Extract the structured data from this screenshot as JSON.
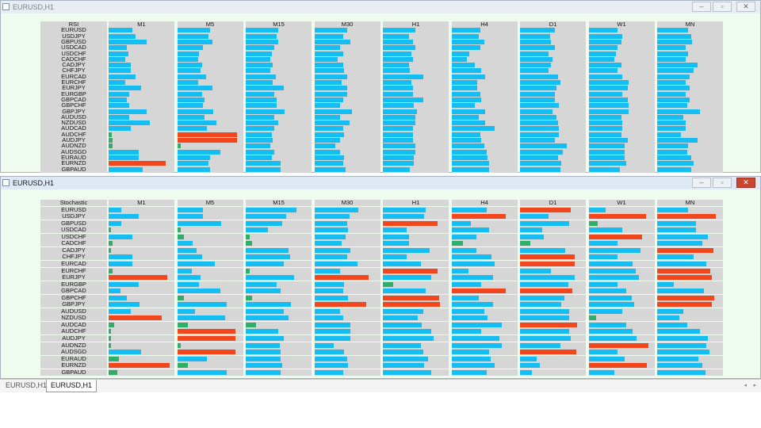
{
  "colors": {
    "blue": "#14bdf2",
    "red": "#f2461c",
    "green": "#2fae6a",
    "cell": "#d6d6d6"
  },
  "windows": [
    {
      "title": "EURUSD,H1",
      "active": false,
      "buttons": [
        "–",
        "▫",
        "✕"
      ],
      "indicator": "RSI",
      "timeframes": [
        "M1",
        "M5",
        "M15",
        "M30",
        "H1",
        "H4",
        "D1",
        "W1",
        "MN"
      ],
      "symbols": [
        "EURUSD",
        "USDJPY",
        "GBPUSD",
        "USDCAD",
        "USDCHF",
        "CADCHF",
        "CADJPY",
        "CHFJPY",
        "EURCAD",
        "EURCHF",
        "EURJPY",
        "EURGBP",
        "GBPCAD",
        "GBPCHF",
        "GBPJPY",
        "AUDUSD",
        "NZDUSD",
        "AUDCAD",
        "AUDCHF",
        "AUDJPY",
        "AUDNZD",
        "AUDSGD",
        "EURAUD",
        "EURNZD",
        "GBPAUD"
      ],
      "rows": [
        [
          "b36",
          "b50",
          "b50",
          "b50",
          "b50",
          "b44",
          "b54",
          "b44",
          "b48"
        ],
        [
          "b42",
          "b48",
          "b47",
          "b44",
          "b40",
          "b42",
          "b46",
          "b52",
          "b52"
        ],
        [
          "b58",
          "b54",
          "b50",
          "b56",
          "b46",
          "b50",
          "b48",
          "b50",
          "b54"
        ],
        [
          "b28",
          "b40",
          "b44",
          "b40",
          "b50",
          "b44",
          "b54",
          "b44",
          "b44"
        ],
        [
          "b30",
          "b34",
          "b40",
          "b44",
          "b44",
          "b28",
          "b44",
          "b42",
          "b48"
        ],
        [
          "b26",
          "b32",
          "b38",
          "b36",
          "b46",
          "b24",
          "b50",
          "b40",
          "b44"
        ],
        [
          "b34",
          "b38",
          "b42",
          "b44",
          "b40",
          "b36",
          "b48",
          "b50",
          "b62"
        ],
        [
          "b34",
          "b36",
          "b38",
          "b46",
          "b42",
          "b46",
          "b44",
          "b44",
          "b56"
        ],
        [
          "b42",
          "b44",
          "b46",
          "b50",
          "b62",
          "b52",
          "b58",
          "b52",
          "b50"
        ],
        [
          "b26",
          "b32",
          "b42",
          "b42",
          "b44",
          "b40",
          "b62",
          "b62",
          "b44"
        ],
        [
          "b50",
          "b54",
          "b58",
          "b50",
          "b46",
          "b40",
          "b56",
          "b60",
          "b50"
        ],
        [
          "b32",
          "b38",
          "b44",
          "b50",
          "b46",
          "b44",
          "b54",
          "b52",
          "b44"
        ],
        [
          "b28",
          "b42",
          "b48",
          "b44",
          "b62",
          "b46",
          "b54",
          "b60",
          "b50"
        ],
        [
          "b32",
          "b40",
          "b48",
          "b40",
          "b48",
          "b36",
          "b60",
          "b62",
          "b46"
        ],
        [
          "b58",
          "b56",
          "b60",
          "b58",
          "b52",
          "b52",
          "b50",
          "b62",
          "b66"
        ],
        [
          "b32",
          "b42",
          "b44",
          "b40",
          "b50",
          "b42",
          "b56",
          "b50",
          "b40"
        ],
        [
          "b64",
          "b60",
          "b50",
          "b54",
          "b50",
          "b52",
          "b58",
          "b52",
          "b44"
        ],
        [
          "b34",
          "b46",
          "b44",
          "b44",
          "b46",
          "b66",
          "b60",
          "b52",
          "b44"
        ],
        [
          "g5",
          "r92",
          "b40",
          "b46",
          "b46",
          "b44",
          "b60",
          "b50",
          "b36"
        ],
        [
          "g6",
          "r92",
          "b42",
          "b40",
          "b46",
          "b46",
          "b54",
          "b60",
          "b62"
        ],
        [
          "g6",
          "g6",
          "b38",
          "b32",
          "b50",
          "b50",
          "b72",
          "b56",
          "b48"
        ],
        [
          "b46",
          "b66",
          "b44",
          "b40",
          "b50",
          "b54",
          "b66",
          "b56",
          "b46"
        ],
        [
          "b46",
          "b50",
          "b40",
          "b46",
          "b48",
          "b56",
          "b58",
          "b56",
          "b52"
        ],
        [
          "r88",
          "b48",
          "b54",
          "b44",
          "b48",
          "b58",
          "b64",
          "b58",
          "b56"
        ],
        [
          "b52",
          "b50",
          "b54",
          "b48",
          "b42",
          "b58",
          "b62",
          "b48",
          "b52"
        ]
      ]
    },
    {
      "title": "EURUSD,H1",
      "active": true,
      "buttons": [
        "–",
        "▫",
        "✕"
      ],
      "indicator": "Stochastic",
      "timeframes": [
        "M1",
        "M5",
        "M15",
        "M30",
        "H1",
        "H4",
        "D1",
        "W1",
        "MN"
      ],
      "symbols": [
        "EURUSD",
        "USDJPY",
        "GBPUSD",
        "USDCAD",
        "USDCHF",
        "CADCHF",
        "CADJPY",
        "CHFJPY",
        "EURCAD",
        "EURCHF",
        "EURJPY",
        "EURGBP",
        "GBPCAD",
        "GBPCHF",
        "GBPJPY",
        "AUDUSD",
        "NZDUSD",
        "AUDCAD",
        "AUDCHF",
        "AUDJPY",
        "AUDNZD",
        "AUDSGD",
        "EURAUD",
        "EURNZD",
        "GBPAUD"
      ],
      "rows": [
        [
          "b20",
          "b40",
          "b78",
          "b68",
          "b66",
          "b54",
          "r78",
          "b26",
          "b48"
        ],
        [
          "b46",
          "b40",
          "b62",
          "b54",
          "b64",
          "r84",
          "b44",
          "r88",
          "r90"
        ],
        [
          "b20",
          "b68",
          "b56",
          "b50",
          "r84",
          "b30",
          "b76",
          "g14",
          "b60"
        ],
        [
          "g4",
          "g6",
          "b34",
          "b52",
          "b36",
          "b58",
          "b34",
          "b52",
          "b60"
        ],
        [
          "b36",
          "g10",
          "g6",
          "b48",
          "b40",
          "b38",
          "b36",
          "r82",
          "b78"
        ],
        [
          "g6",
          "b24",
          "g10",
          "b42",
          "b40",
          "g18",
          "g16",
          "b44",
          "b70"
        ],
        [
          "g4",
          "b30",
          "b66",
          "b56",
          "b72",
          "b38",
          "b70",
          "b80",
          "r86"
        ],
        [
          "b36",
          "b38",
          "b68",
          "b50",
          "b36",
          "b62",
          "r84",
          "b44",
          "b56"
        ],
        [
          "b36",
          "b58",
          "b58",
          "b66",
          "b58",
          "b66",
          "r84",
          "b68",
          "b76"
        ],
        [
          "g6",
          "b22",
          "g6",
          "b40",
          "r84",
          "b26",
          "b48",
          "b72",
          "r82"
        ],
        [
          "r90",
          "b36",
          "b74",
          "r84",
          "b74",
          "b64",
          "b84",
          "b78",
          "r84"
        ],
        [
          "b46",
          "b34",
          "b48",
          "b46",
          "g16",
          "b46",
          "b74",
          "b44",
          "b26"
        ],
        [
          "b18",
          "b66",
          "b54",
          "b44",
          "b66",
          "r84",
          "r80",
          "b58",
          "b72"
        ],
        [
          "b28",
          "g10",
          "g10",
          "b52",
          "r86",
          "b42",
          "b68",
          "b66",
          "r88"
        ],
        [
          "b48",
          "b76",
          "b70",
          "r80",
          "r88",
          "b64",
          "b64",
          "b70",
          "r84"
        ],
        [
          "b34",
          "b28",
          "b58",
          "b40",
          "b62",
          "b50",
          "b76",
          "b52",
          "b40"
        ],
        [
          "r82",
          "b74",
          "b66",
          "b44",
          "b54",
          "b56",
          "b76",
          "g12",
          "b34"
        ],
        [
          "g8",
          "g16",
          "g16",
          "b56",
          "b60",
          "b78",
          "r88",
          "b58",
          "b46"
        ],
        [
          "g4",
          "r90",
          "b50",
          "b56",
          "b74",
          "b46",
          "b76",
          "b68",
          "b66"
        ],
        [
          "g4",
          "r90",
          "b58",
          "b56",
          "b78",
          "b74",
          "b78",
          "b74",
          "b78"
        ],
        [
          "g4",
          "g6",
          "b52",
          "b30",
          "b58",
          "b78",
          "b62",
          "r92",
          "b76"
        ],
        [
          "b50",
          "r90",
          "b54",
          "b46",
          "b62",
          "b58",
          "r86",
          "b44",
          "b80"
        ],
        [
          "g16",
          "b46",
          "b54",
          "b50",
          "b70",
          "b60",
          "b26",
          "b56",
          "b64"
        ],
        [
          "r94",
          "g16",
          "b56",
          "b52",
          "b64",
          "b66",
          "b30",
          "r90",
          "b70"
        ],
        [
          "g14",
          "b76",
          "b54",
          "b44",
          "b74",
          "b54",
          "b18",
          "b40",
          "b74"
        ]
      ]
    }
  ],
  "tabs": [
    "EURUSD,H1",
    "EURUSD,H1"
  ],
  "active_tab": 1,
  "scroll_arrows": [
    "◂",
    "▸"
  ]
}
